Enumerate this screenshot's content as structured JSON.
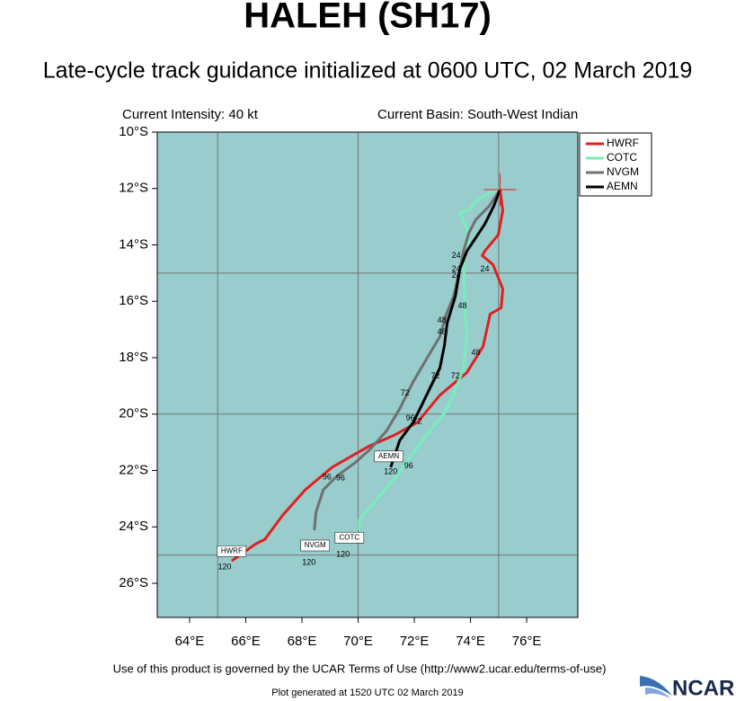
{
  "chart_data": {
    "type": "track",
    "title": "HALEH (SH17)",
    "subtitle": "Late-cycle track guidance initialized at 0600 UTC, 02 March 2019",
    "info_left": "Current Intensity: 40 kt",
    "info_right": "Current Basin: South-West Indian",
    "footer": "Use of this product is governed by the UCAR Terms of Use (http://www2.ucar.edu/terms-of-use)",
    "generated": "Plot generated at 1520 UTC   02 March 2019",
    "logo": "NCAR",
    "xlim": [
      62.85,
      77.82
    ],
    "ylim": [
      -27.21,
      -10
    ],
    "xticks": [
      {
        "value": 64,
        "label": "64°E"
      },
      {
        "value": 66,
        "label": "66°E"
      },
      {
        "value": 68,
        "label": "68°E"
      },
      {
        "value": 70,
        "label": "70°E"
      },
      {
        "value": 72,
        "label": "72°E"
      },
      {
        "value": 74,
        "label": "74°E"
      },
      {
        "value": 76,
        "label": "76°E"
      }
    ],
    "yticks": [
      {
        "value": -10,
        "label": "10°S"
      },
      {
        "value": -12,
        "label": "12°S"
      },
      {
        "value": -14,
        "label": "14°S"
      },
      {
        "value": -16,
        "label": "16°S"
      },
      {
        "value": -18,
        "label": "18°S"
      },
      {
        "value": -20,
        "label": "20°S"
      },
      {
        "value": -22,
        "label": "22°S"
      },
      {
        "value": -24,
        "label": "24°S"
      },
      {
        "value": -26,
        "label": "26°S"
      }
    ],
    "grid_x": [
      65,
      70,
      75
    ],
    "grid_y": [
      -15,
      -20,
      -25
    ],
    "background": "#99cccc",
    "current_position": {
      "lon": 75.05,
      "lat": -12.04,
      "color": "#dd2222"
    },
    "series": [
      {
        "name": "HWRF",
        "color": "#e02020",
        "x": [
          75.05,
          75.15,
          74.99,
          74.51,
          74.42,
          74.8,
          75.15,
          75.09,
          74.7,
          74.45,
          73.87,
          72.91,
          72.11,
          71.32,
          70.36,
          69.08,
          68.12,
          67.32,
          66.68,
          66.36,
          65.5
        ],
        "values": [
          -12.04,
          -12.78,
          -13.64,
          -14.22,
          -14.38,
          -14.7,
          -15.56,
          -16.23,
          -16.45,
          -17.6,
          -18.53,
          -19.33,
          -20.29,
          -20.73,
          -21.15,
          -21.88,
          -22.68,
          -23.58,
          -24.44,
          -24.6,
          -25.21
        ]
      },
      {
        "name": "COTC",
        "color": "#77eebb",
        "x": [
          75.05,
          74.67,
          74.19,
          73.94,
          73.62,
          73.87,
          73.94,
          73.75,
          73.78,
          73.81,
          73.87,
          73.75,
          73.39,
          73.07,
          72.28,
          71.48,
          70.68,
          70.04,
          70.04
        ],
        "values": [
          -12.04,
          -12.14,
          -12.46,
          -12.78,
          -12.84,
          -13.42,
          -13.99,
          -14.54,
          -15.5,
          -16.45,
          -17.25,
          -18.37,
          -19.33,
          -19.97,
          -20.93,
          -22.05,
          -23.01,
          -23.74,
          -24.12
        ]
      },
      {
        "name": "NVGM",
        "color": "#707070",
        "x": [
          75.05,
          74.67,
          74.19,
          73.94,
          73.75,
          73.62,
          73.4,
          73.14,
          72.91,
          72.43,
          71.96,
          71.48,
          71.0,
          70.42,
          69.88,
          69.24,
          68.76,
          68.5,
          68.44
        ],
        "values": [
          -12.04,
          -12.62,
          -13.1,
          -13.58,
          -14.22,
          -14.86,
          -15.82,
          -16.45,
          -17.25,
          -18.05,
          -18.85,
          -19.81,
          -20.61,
          -21.25,
          -21.73,
          -22.2,
          -22.68,
          -23.48,
          -24.12
        ]
      },
      {
        "name": "AEMN",
        "color": "#000000",
        "x": [
          75.05,
          74.83,
          74.51,
          74.19,
          73.87,
          73.62,
          73.46,
          73.17,
          73.07,
          72.91,
          72.59,
          72.28,
          71.96,
          71.48,
          71.32,
          71.16
        ],
        "values": [
          -12.04,
          -12.62,
          -13.26,
          -13.74,
          -14.22,
          -14.86,
          -15.82,
          -16.77,
          -17.57,
          -18.37,
          -19.01,
          -19.65,
          -20.29,
          -20.93,
          -21.41,
          -21.88
        ]
      }
    ],
    "hour_labels": [
      {
        "text": "24",
        "lon": 73.49,
        "lat": -14.38
      },
      {
        "text": "24",
        "lon": 73.49,
        "lat": -14.86
      },
      {
        "text": "24",
        "lon": 73.49,
        "lat": -15.08
      },
      {
        "text": "24",
        "lon": 74.51,
        "lat": -14.86
      },
      {
        "text": "48",
        "lon": 73.71,
        "lat": -16.17
      },
      {
        "text": "48",
        "lon": 72.98,
        "lat": -16.68
      },
      {
        "text": "48",
        "lon": 72.98,
        "lat": -17.09
      },
      {
        "text": "48",
        "lon": 74.19,
        "lat": -17.83
      },
      {
        "text": "72",
        "lon": 72.75,
        "lat": -18.66
      },
      {
        "text": "72",
        "lon": 73.46,
        "lat": -18.66
      },
      {
        "text": "72",
        "lon": 71.67,
        "lat": -19.27
      },
      {
        "text": "96",
        "lon": 71.86,
        "lat": -20.16
      },
      {
        "text": "72",
        "lon": 72.11,
        "lat": -20.26
      },
      {
        "text": "96",
        "lon": 71.8,
        "lat": -21.85
      },
      {
        "text": "96",
        "lon": 68.89,
        "lat": -22.24
      },
      {
        "text": "96",
        "lon": 69.37,
        "lat": -22.27
      },
      {
        "text": "120",
        "lon": 71.16,
        "lat": -22.05
      },
      {
        "text": "120",
        "lon": 69.46,
        "lat": -24.98
      },
      {
        "text": "120",
        "lon": 68.25,
        "lat": -25.27
      },
      {
        "text": "120",
        "lon": 65.25,
        "lat": -25.43
      }
    ],
    "model_tags": [
      {
        "text": "AEMN",
        "lon": 71.09,
        "lat": -21.5
      },
      {
        "text": "COTC",
        "lon": 69.69,
        "lat": -24.38
      },
      {
        "text": "NVGM",
        "lon": 68.47,
        "lat": -24.66
      },
      {
        "text": "HWRF",
        "lon": 65.5,
        "lat": -24.86
      }
    ]
  }
}
